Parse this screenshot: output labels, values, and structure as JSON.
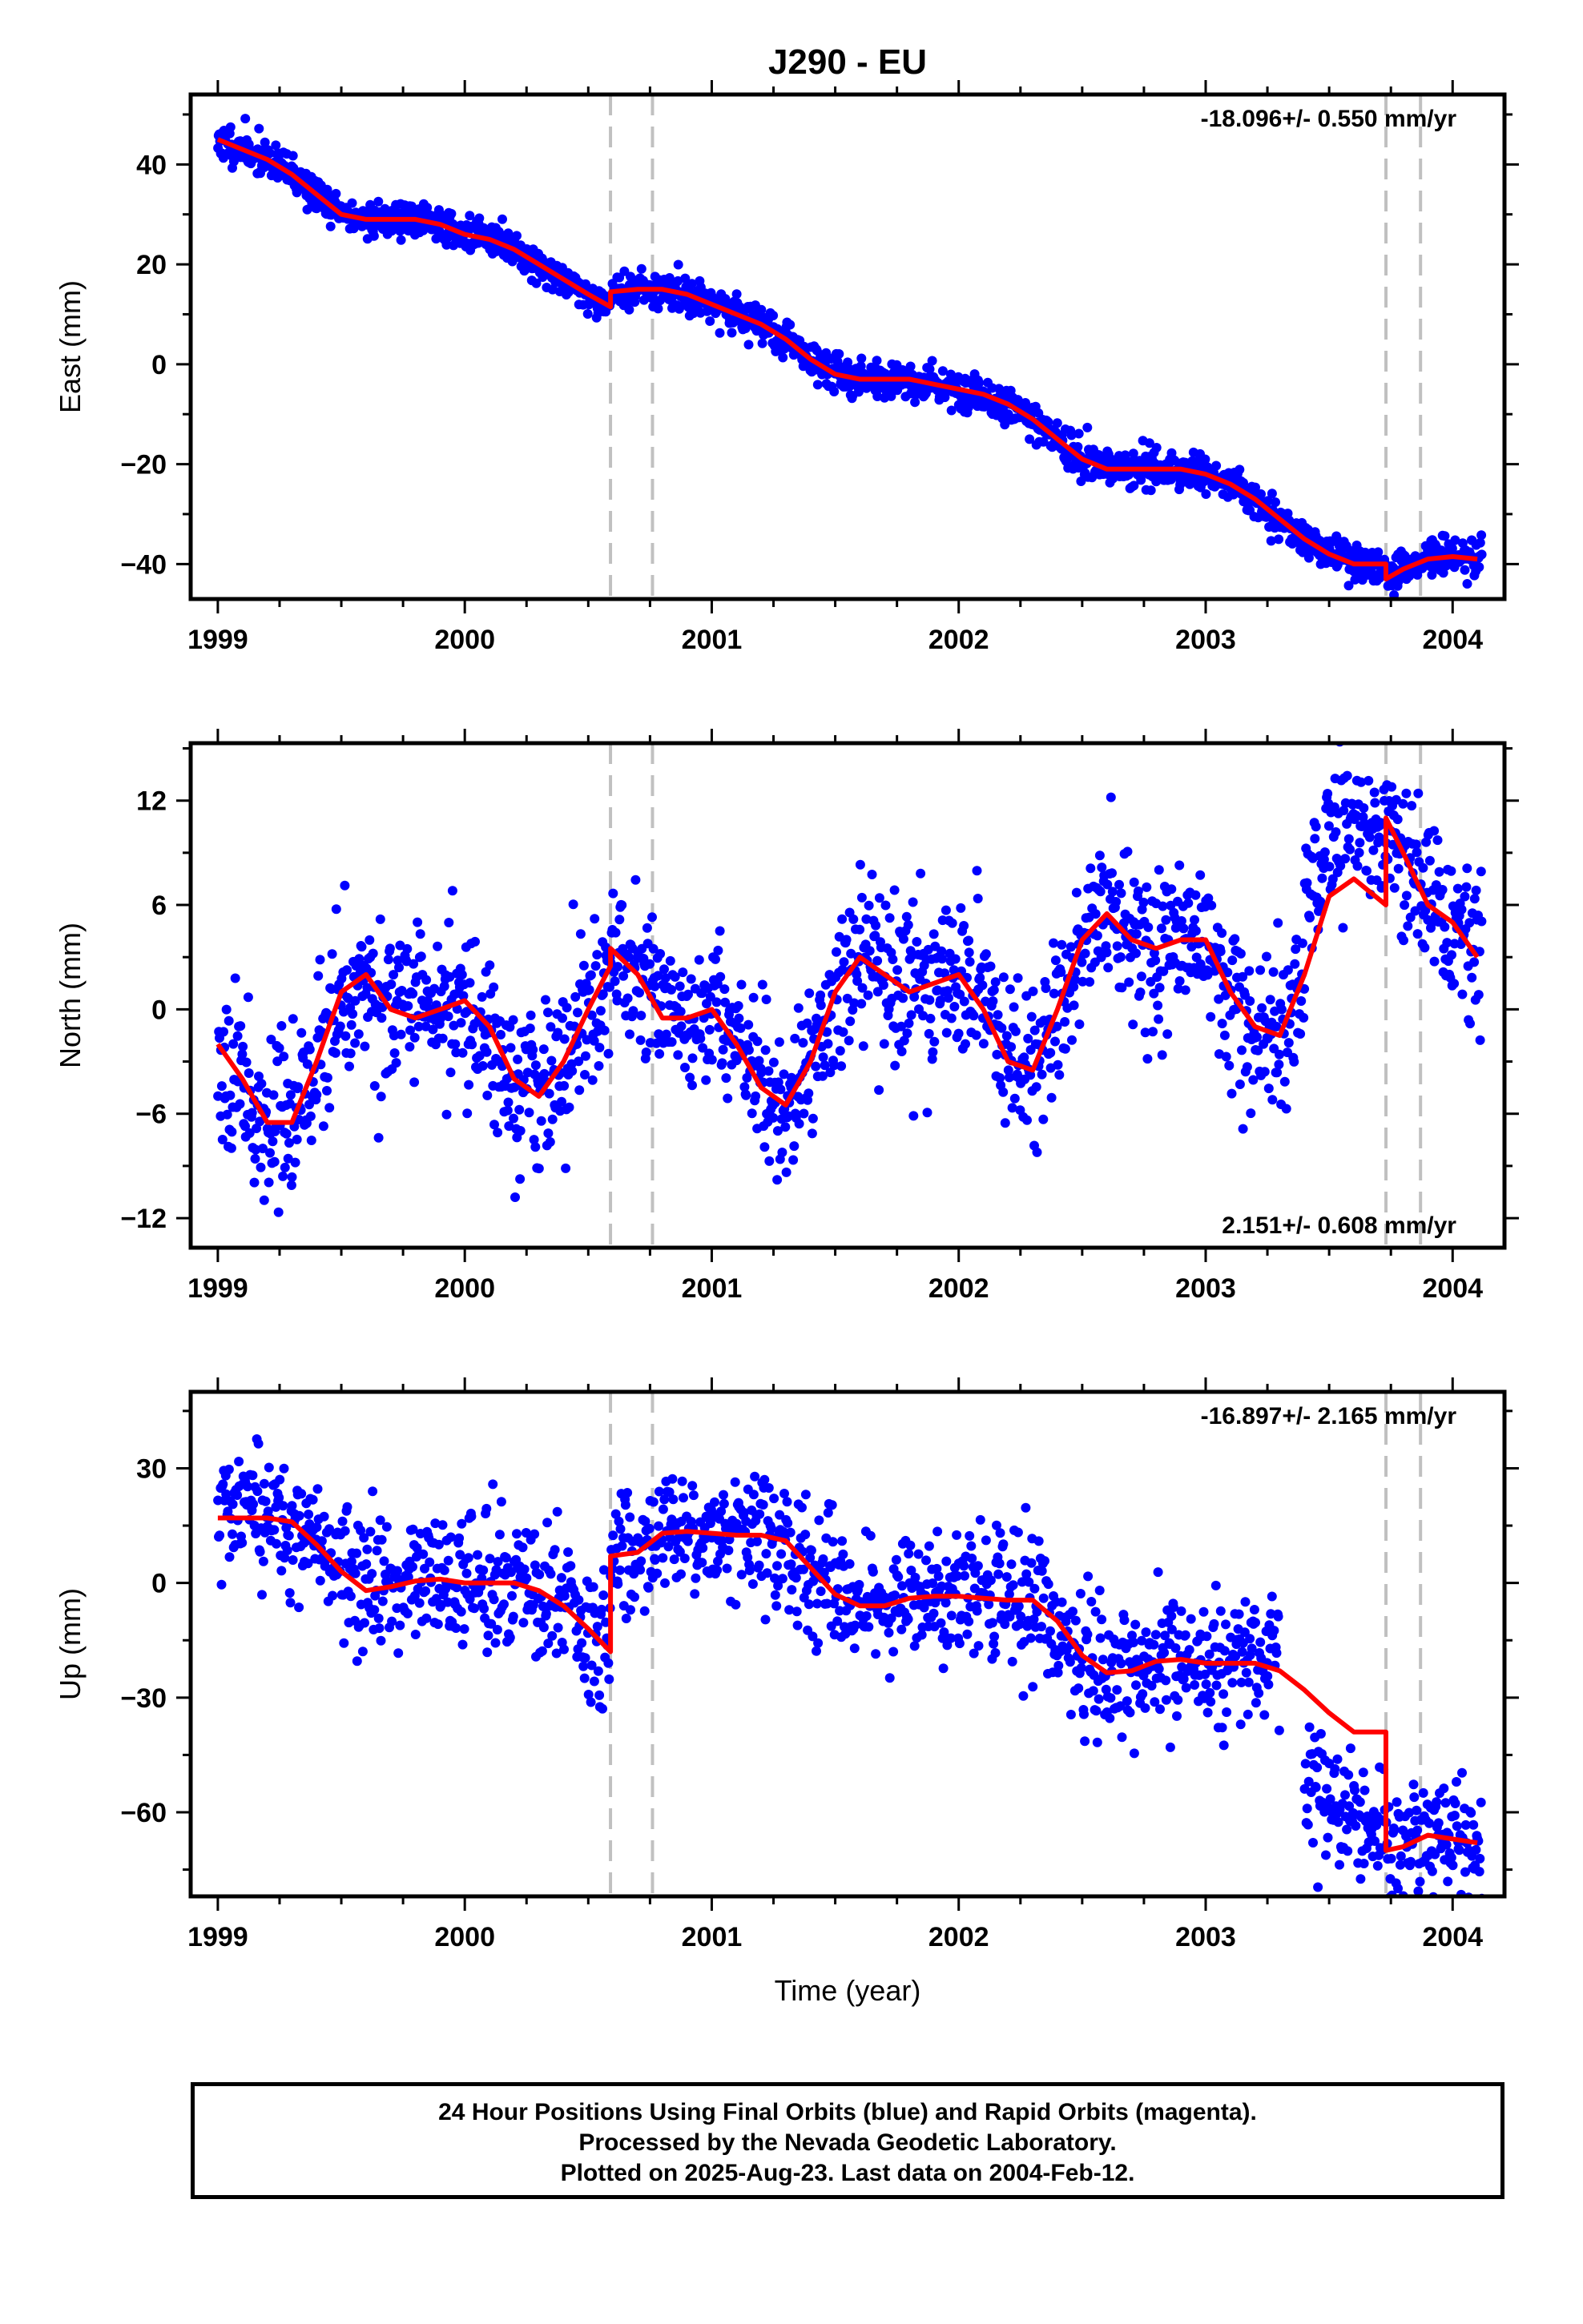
{
  "title": "J290 - EU",
  "xlabel": "Time (year)",
  "footer": {
    "line1": "24 Hour Positions Using Final Orbits (blue) and Rapid Orbits (magenta).",
    "line2": "Processed by the Nevada Geodetic Laboratory.",
    "line3": "Plotted on 2025-Aug-23. Last data on 2004-Feb-12."
  },
  "colors": {
    "data": "#0000ff",
    "model": "#ff0000",
    "steps": "#c0c0c0",
    "frame": "#000000"
  },
  "chart_data": [
    {
      "type": "scatter",
      "component": "East",
      "ylabel": "East (mm)",
      "rate_label": "-18.096+/- 0.550 mm/yr",
      "xlim": [
        1998.89,
        2004.21
      ],
      "ylim": [
        -47,
        54
      ],
      "xticks": [
        1999,
        2000,
        2001,
        2002,
        2003,
        2004
      ],
      "yticks": [
        -40,
        -20,
        0,
        20,
        40
      ],
      "step_epochs": [
        2000.59,
        2000.76,
        2003.73,
        2003.87
      ],
      "model_series": {
        "name": "model",
        "x": [
          1999.0,
          1999.1,
          1999.2,
          1999.3,
          1999.4,
          1999.5,
          1999.6,
          1999.7,
          1999.8,
          1999.9,
          2000.0,
          2000.1,
          2000.2,
          2000.3,
          2000.4,
          2000.5,
          2000.59,
          2000.59,
          2000.7,
          2000.8,
          2000.9,
          2001.0,
          2001.1,
          2001.2,
          2001.3,
          2001.4,
          2001.5,
          2001.6,
          2001.7,
          2001.8,
          2001.9,
          2002.0,
          2002.1,
          2002.2,
          2002.3,
          2002.4,
          2002.5,
          2002.6,
          2002.7,
          2002.8,
          2002.9,
          2003.0,
          2003.1,
          2003.2,
          2003.3,
          2003.4,
          2003.5,
          2003.6,
          2003.73,
          2003.73,
          2003.8,
          2003.9,
          2004.0,
          2004.1
        ],
        "y": [
          45,
          43,
          41,
          38,
          34,
          30,
          29,
          29,
          29,
          28,
          26,
          25,
          23,
          20,
          17,
          14,
          11.5,
          14.5,
          15,
          15,
          14,
          12,
          10,
          8,
          5,
          1,
          -2,
          -3,
          -3,
          -3,
          -4,
          -5,
          -6,
          -8,
          -11,
          -15,
          -19,
          -21,
          -21,
          -21,
          -21,
          -22,
          -24,
          -27,
          -31,
          -35,
          -38,
          -40,
          -40,
          -43,
          -41,
          -39,
          -38.5,
          -39
        ]
      },
      "data_series": {
        "name": "data",
        "noise": 1.8,
        "seed": 11,
        "points_per_year": 360,
        "x_end": 2004.12,
        "offsets": [
          {
            "from": 2003.4,
            "to": 2003.75,
            "shift": 0
          }
        ]
      }
    },
    {
      "type": "scatter",
      "component": "North",
      "ylabel": "North (mm)",
      "rate_label": "2.151+/- 0.608 mm/yr",
      "xlim": [
        1998.89,
        2004.21
      ],
      "ylim": [
        -13.7,
        15.3
      ],
      "xticks": [
        1999,
        2000,
        2001,
        2002,
        2003,
        2004
      ],
      "yticks": [
        -12,
        -6,
        0,
        6,
        12
      ],
      "step_epochs": [
        2000.59,
        2000.76,
        2003.73,
        2003.87
      ],
      "model_series": {
        "name": "model",
        "x": [
          1999.0,
          1999.1,
          1999.2,
          1999.3,
          1999.4,
          1999.5,
          1999.6,
          1999.7,
          1999.8,
          1999.9,
          2000.0,
          2000.1,
          2000.2,
          2000.3,
          2000.4,
          2000.5,
          2000.59,
          2000.59,
          2000.7,
          2000.8,
          2000.9,
          2001.0,
          2001.1,
          2001.2,
          2001.3,
          2001.4,
          2001.5,
          2001.6,
          2001.7,
          2001.8,
          2001.9,
          2002.0,
          2002.1,
          2002.2,
          2002.3,
          2002.4,
          2002.5,
          2002.6,
          2002.7,
          2002.8,
          2002.9,
          2003.0,
          2003.1,
          2003.2,
          2003.3,
          2003.4,
          2003.5,
          2003.6,
          2003.73,
          2003.73,
          2003.8,
          2003.9,
          2004.0,
          2004.1
        ],
        "y": [
          -2,
          -4,
          -6.5,
          -6.5,
          -3,
          1,
          2,
          0,
          -0.5,
          0,
          0.5,
          -1,
          -4,
          -5,
          -3,
          0,
          2.5,
          3.5,
          2,
          -0.5,
          -0.5,
          0,
          -2,
          -4.5,
          -5.5,
          -3,
          1,
          3,
          2,
          1,
          1.5,
          2,
          0,
          -3,
          -3.5,
          0,
          4,
          5.5,
          4,
          3.5,
          4,
          4,
          1,
          -1,
          -1.5,
          2,
          6.5,
          7.5,
          6,
          11,
          9,
          6,
          5,
          3
        ]
      },
      "data_series": {
        "name": "data",
        "noise": 2.3,
        "seed": 23,
        "points_per_year": 320,
        "x_end": 2004.12,
        "offsets": [
          {
            "from": 2003.4,
            "to": 2003.73,
            "shift": 3.5
          }
        ]
      }
    },
    {
      "type": "scatter",
      "component": "Up",
      "ylabel": "Up (mm)",
      "rate_label": "-16.897+/- 2.165 mm/yr",
      "xlim": [
        1998.89,
        2004.21
      ],
      "ylim": [
        -82,
        50
      ],
      "xticks": [
        1999,
        2000,
        2001,
        2002,
        2003,
        2004
      ],
      "yticks": [
        -60,
        -30,
        0,
        30
      ],
      "step_epochs": [
        2000.59,
        2000.76,
        2003.73,
        2003.87
      ],
      "model_series": {
        "name": "model",
        "x": [
          1999.0,
          1999.1,
          1999.2,
          1999.3,
          1999.4,
          1999.5,
          1999.6,
          1999.7,
          1999.8,
          1999.9,
          2000.0,
          2000.1,
          2000.2,
          2000.3,
          2000.4,
          2000.5,
          2000.59,
          2000.59,
          2000.7,
          2000.8,
          2000.9,
          2001.0,
          2001.1,
          2001.2,
          2001.3,
          2001.4,
          2001.5,
          2001.6,
          2001.7,
          2001.8,
          2001.9,
          2002.0,
          2002.1,
          2002.2,
          2002.3,
          2002.4,
          2002.5,
          2002.6,
          2002.7,
          2002.8,
          2002.9,
          2003.0,
          2003.1,
          2003.2,
          2003.3,
          2003.4,
          2003.5,
          2003.6,
          2003.73,
          2003.73,
          2003.8,
          2003.9,
          2004.0,
          2004.1
        ],
        "y": [
          17,
          17,
          17,
          16,
          10,
          3,
          -2,
          -1,
          0.5,
          1,
          0,
          0,
          0,
          -2,
          -6,
          -12,
          -18,
          7,
          8,
          13,
          13.5,
          13,
          12.5,
          12.5,
          11,
          4,
          -3,
          -6,
          -6,
          -4,
          -3.5,
          -3.5,
          -4,
          -4.5,
          -4.5,
          -10,
          -19,
          -23.5,
          -23,
          -20.5,
          -20,
          -21,
          -21,
          -21,
          -23,
          -28,
          -34,
          -39,
          -39,
          -70,
          -69,
          -66,
          -67,
          -68
        ]
      },
      "data_series": {
        "name": "data",
        "noise": 8.5,
        "seed": 37,
        "points_per_year": 300,
        "x_end": 2004.12,
        "offsets": [
          {
            "from": 2003.3,
            "to": 2003.4,
            "gap": true
          },
          {
            "from": 2000.59,
            "to": 2003.3,
            "shift": 0
          },
          {
            "from": 2003.4,
            "to": 2003.73,
            "shift": -23
          }
        ]
      }
    }
  ]
}
